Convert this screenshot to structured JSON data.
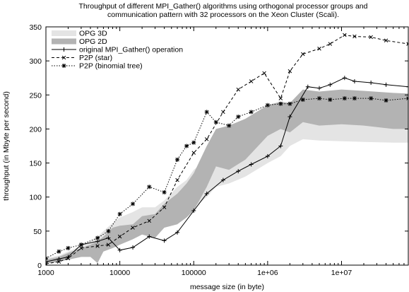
{
  "chart_data": {
    "type": "line",
    "title_lines": [
      "Throughput of different MPI_Gather() algorithms using orthogonal processor groups and",
      "communication pattern with 32 processors on the Xeon Cluster (Scali)."
    ],
    "xlabel": "message size (in byte)",
    "ylabel": "throughput (in Mbyte per second)",
    "xscale": "log",
    "xlim": [
      1000,
      80000000
    ],
    "ylim": [
      0,
      350
    ],
    "xticks": [
      {
        "value": 1000,
        "label": "1000"
      },
      {
        "value": 10000,
        "label": "10000"
      },
      {
        "value": 100000,
        "label": "100000"
      },
      {
        "value": 1000000,
        "label": "1e+06"
      },
      {
        "value": 10000000,
        "label": "1e+07"
      }
    ],
    "yticks": [
      0,
      50,
      100,
      150,
      200,
      250,
      300,
      350
    ],
    "legend_position": "top-left",
    "bands": [
      {
        "name": "OPG 3D",
        "color": "#e4e4e4",
        "x": [
          1000,
          1500,
          2000,
          3000,
          4000,
          5000,
          6000,
          8000,
          10000,
          15000,
          20000,
          30000,
          40000,
          60000,
          80000,
          100000,
          150000,
          200000,
          300000,
          500000,
          1000000,
          1500000,
          2000000,
          3000000,
          5000000,
          10000000,
          20000000,
          50000000,
          80000000
        ],
        "upper": [
          10,
          14,
          20,
          28,
          35,
          42,
          50,
          62,
          70,
          78,
          85,
          85,
          95,
          115,
          125,
          140,
          155,
          165,
          170,
          185,
          210,
          225,
          235,
          240,
          245,
          248,
          250,
          250,
          248
        ],
        "lower": [
          2,
          5,
          8,
          12,
          15,
          20,
          25,
          30,
          35,
          42,
          48,
          50,
          55,
          65,
          75,
          85,
          100,
          115,
          120,
          130,
          150,
          160,
          175,
          185,
          183,
          182,
          181,
          180,
          180
        ]
      },
      {
        "name": "OPG 2D",
        "color": "#b3b3b3",
        "x": [
          1000,
          1500,
          2000,
          3000,
          4000,
          5000,
          6000,
          8000,
          10000,
          15000,
          20000,
          30000,
          40000,
          60000,
          80000,
          100000,
          150000,
          200000,
          300000,
          500000,
          1000000,
          1500000,
          2000000,
          3000000,
          5000000,
          10000000,
          20000000,
          50000000,
          80000000
        ],
        "upper": [
          8,
          12,
          18,
          25,
          30,
          35,
          42,
          55,
          58,
          60,
          72,
          75,
          90,
          105,
          120,
          135,
          175,
          200,
          205,
          215,
          235,
          240,
          238,
          258,
          255,
          258,
          256,
          253,
          252
        ],
        "lower": [
          2,
          5,
          8,
          12,
          12,
          3,
          20,
          25,
          30,
          38,
          45,
          40,
          55,
          60,
          70,
          80,
          115,
          145,
          140,
          155,
          190,
          200,
          195,
          210,
          205,
          207,
          205,
          200,
          200
        ]
      }
    ],
    "series": [
      {
        "name": "original MPI_Gather() operation",
        "style": "solid",
        "marker": "plus",
        "x": [
          1000,
          1500,
          2000,
          3000,
          5000,
          7000,
          10000,
          15000,
          25000,
          40000,
          60000,
          100000,
          150000,
          250000,
          400000,
          600000,
          1000000,
          1500000,
          2000000,
          3500000,
          5000000,
          7000000,
          11000000,
          15000000,
          25000000,
          40000000,
          80000000
        ],
        "y": [
          5,
          9,
          12,
          30,
          35,
          40,
          22,
          26,
          42,
          36,
          48,
          80,
          105,
          125,
          138,
          148,
          160,
          175,
          218,
          262,
          260,
          265,
          275,
          270,
          268,
          265,
          262
        ]
      },
      {
        "name": "P2P (star)",
        "style": "dashed",
        "marker": "x",
        "x": [
          1000,
          1500,
          2000,
          3000,
          5000,
          7000,
          10000,
          15000,
          25000,
          40000,
          60000,
          100000,
          150000,
          250000,
          400000,
          600000,
          900000,
          1500000,
          2000000,
          3000000,
          5000000,
          7000000,
          11000000,
          15000000,
          25000000,
          40000000,
          80000000
        ],
        "y": [
          2,
          5,
          10,
          25,
          28,
          30,
          42,
          55,
          65,
          85,
          125,
          165,
          185,
          225,
          258,
          270,
          282,
          245,
          285,
          310,
          318,
          325,
          338,
          336,
          335,
          330,
          325
        ]
      },
      {
        "name": "P2P (binomial tree)",
        "style": "dotted",
        "marker": "star",
        "x": [
          1000,
          1500,
          2000,
          3000,
          5000,
          7000,
          10000,
          15000,
          25000,
          40000,
          60000,
          80000,
          100000,
          150000,
          200000,
          300000,
          400000,
          600000,
          1000000,
          1500000,
          2000000,
          3000000,
          5000000,
          7000000,
          11000000,
          15000000,
          25000000,
          40000000,
          80000000
        ],
        "y": [
          10,
          20,
          25,
          30,
          40,
          50,
          75,
          90,
          115,
          107,
          155,
          175,
          180,
          225,
          210,
          205,
          218,
          225,
          235,
          237,
          237,
          243,
          245,
          243,
          245,
          245,
          245,
          242,
          245
        ]
      }
    ]
  }
}
